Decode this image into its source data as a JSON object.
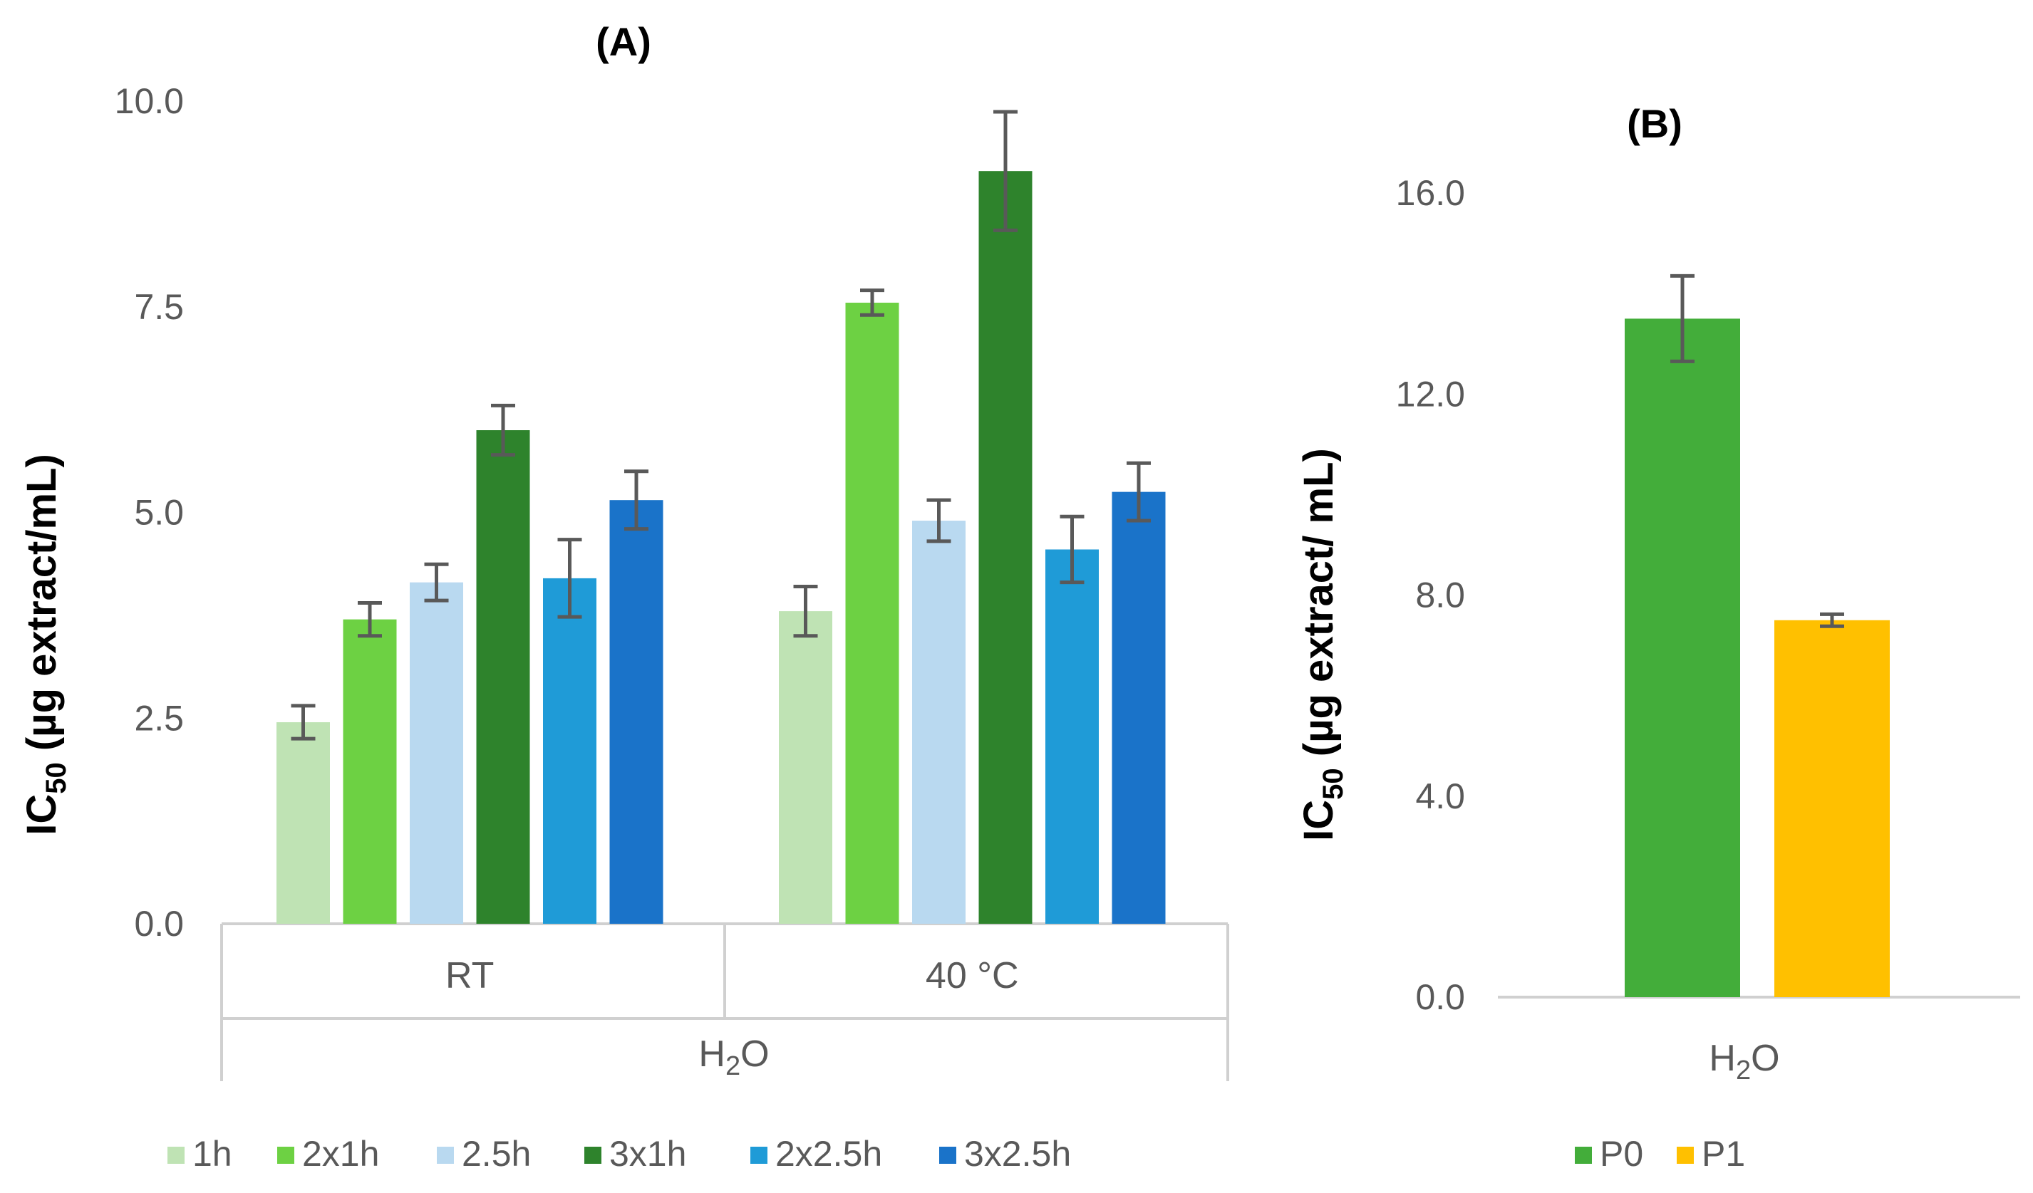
{
  "chart_data": [
    {
      "type": "bar",
      "title": "(A)",
      "ylabel": "IC50 (µg extract/mL)",
      "ylabel_main": "IC",
      "ylabel_sub": "50",
      "ylabel_rest": " (µg extract/mL)",
      "ylim": [
        0,
        10
      ],
      "yticks": [
        "0.0",
        "2.5",
        "5.0",
        "7.5",
        "10.0"
      ],
      "ytick_values": [
        0,
        2.5,
        5,
        7.5,
        10
      ],
      "categories": [
        "RT",
        "40 °C"
      ],
      "group_label": "H2O",
      "group_label_main": "H",
      "group_label_sub": "2",
      "group_label_rest": "O",
      "series": [
        {
          "name": "1h",
          "color": "#bfe3b4",
          "values": [
            2.45,
            3.8
          ],
          "errors": [
            0.2,
            0.3
          ]
        },
        {
          "name": "2x1h",
          "color": "#6dd143",
          "values": [
            3.7,
            7.55
          ],
          "errors": [
            0.2,
            0.15
          ]
        },
        {
          "name": "2.5h",
          "color": "#b9d9f0",
          "values": [
            4.15,
            4.9
          ],
          "errors": [
            0.22,
            0.25
          ]
        },
        {
          "name": "3x1h",
          "color": "#2e832c",
          "values": [
            6.0,
            9.15
          ],
          "errors": [
            0.3,
            0.72
          ]
        },
        {
          "name": "2x2.5h",
          "color": "#1f9bd7",
          "values": [
            4.2,
            4.55
          ],
          "errors": [
            0.47,
            0.4
          ]
        },
        {
          "name": "3x2.5h",
          "color": "#1a73c9",
          "values": [
            5.15,
            5.25
          ],
          "errors": [
            0.35,
            0.35
          ]
        }
      ]
    },
    {
      "type": "bar",
      "title": "(B)",
      "ylabel": "IC50 (µg extract/ mL)",
      "ylabel_main": "IC",
      "ylabel_sub": "50",
      "ylabel_rest": " (µg extract/ mL)",
      "ylim": [
        0,
        18
      ],
      "yticks": [
        "0.0",
        "4.0",
        "8.0",
        "12.0",
        "16.0"
      ],
      "ytick_values": [
        0,
        4,
        8,
        12,
        16
      ],
      "categories": [
        "H2O"
      ],
      "category_main": "H",
      "category_sub": "2",
      "category_rest": "O",
      "series": [
        {
          "name": "P0",
          "color": "#43ad3a",
          "values": [
            13.5
          ],
          "errors": [
            0.85
          ]
        },
        {
          "name": "P1",
          "color": "#ffc000",
          "values": [
            7.5
          ],
          "errors": [
            0.12
          ]
        }
      ]
    }
  ]
}
